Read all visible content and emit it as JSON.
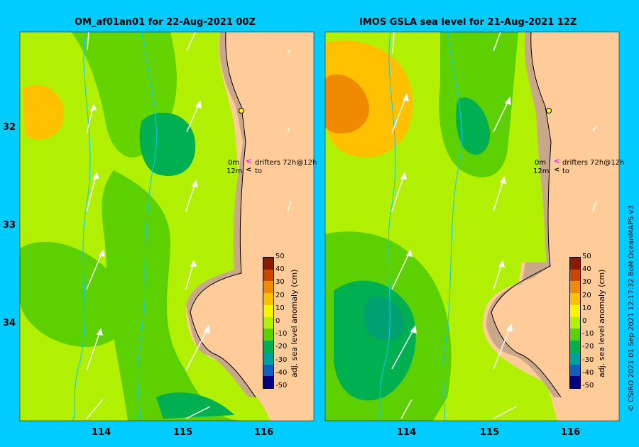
{
  "panels": [
    {
      "title": "OM_af01an01 for 22-Aug-2021 00Z"
    },
    {
      "title": "IMOS GSLA sea level  for 21-Aug-2021 12Z"
    }
  ],
  "lat_labels": [
    "32",
    "33",
    "34"
  ],
  "lon_labels": [
    "114",
    "115",
    "116"
  ],
  "legend": {
    "line1_depth": "0m",
    "line1_arrow": "<",
    "line1_text": "drifters 72h@12h",
    "line2_depth": "12m",
    "line2_arrow": "<",
    "line2_text": "to"
  },
  "colorbar": {
    "title": "adj. sea level anomaly (cm)",
    "ticks": [
      "50",
      "40",
      "30",
      "20",
      "10",
      "0",
      "-10",
      "-20",
      "-30",
      "-40",
      "-50"
    ],
    "colors": [
      "#8b1a00",
      "#cc4400",
      "#f08a00",
      "#ffc000",
      "#f5f500",
      "#b0f000",
      "#5cd000",
      "#00b050",
      "#00a0a0",
      "#1060c0",
      "#000080"
    ]
  },
  "credit": "© CSIRO 2021   01 Sep 2021 12:17:32 BoM OceanMAPS v3",
  "colors": {
    "background": "#00ccff",
    "land": "#ffcc99",
    "coast": "#c8a888"
  }
}
